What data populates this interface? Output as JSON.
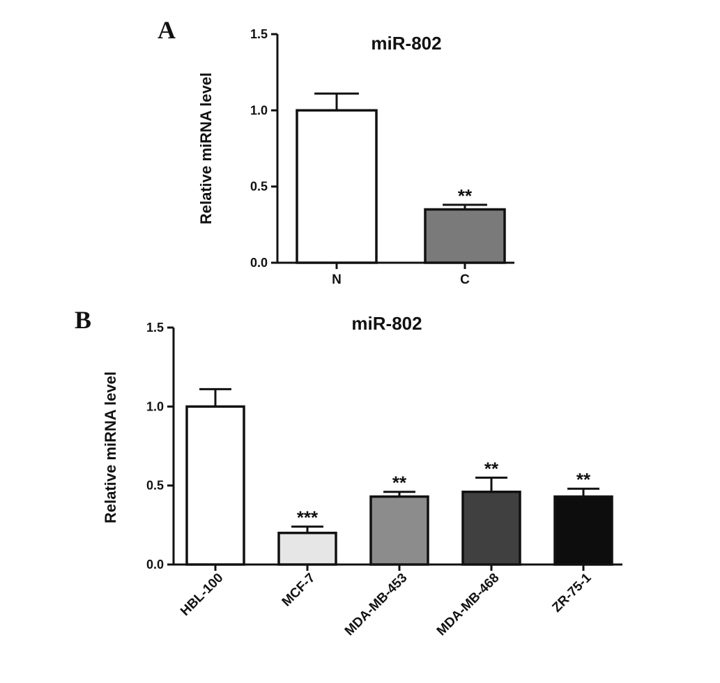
{
  "chart_data": [
    {
      "panel": "A",
      "type": "bar",
      "title": "miR-802",
      "ylabel": "Relative miRNA level",
      "xlabel": "",
      "ylim": [
        0,
        1.5
      ],
      "yticks": [
        "0.0",
        "0.5",
        "1.0",
        "1.5"
      ],
      "categories": [
        "N",
        "C"
      ],
      "values": [
        1.0,
        0.35
      ],
      "errors": [
        0.11,
        0.03
      ],
      "significance": [
        "",
        "**"
      ],
      "colors": [
        "#ffffff",
        "#7a7a7a"
      ]
    },
    {
      "panel": "B",
      "type": "bar",
      "title": "miR-802",
      "ylabel": "Relative miRNA level",
      "xlabel": "",
      "ylim": [
        0,
        1.5
      ],
      "yticks": [
        "0.0",
        "0.5",
        "1.0",
        "1.5"
      ],
      "categories": [
        "HBL-100",
        "MCF-7",
        "MDA-MB-453",
        "MDA-MB-468",
        "ZR-75-1"
      ],
      "values": [
        1.0,
        0.2,
        0.43,
        0.46,
        0.43
      ],
      "errors": [
        0.11,
        0.04,
        0.03,
        0.09,
        0.05
      ],
      "significance": [
        "",
        "***",
        "**",
        "**",
        "**"
      ],
      "colors": [
        "#ffffff",
        "#e6e6e6",
        "#8c8c8c",
        "#404040",
        "#0d0d0d"
      ]
    }
  ]
}
